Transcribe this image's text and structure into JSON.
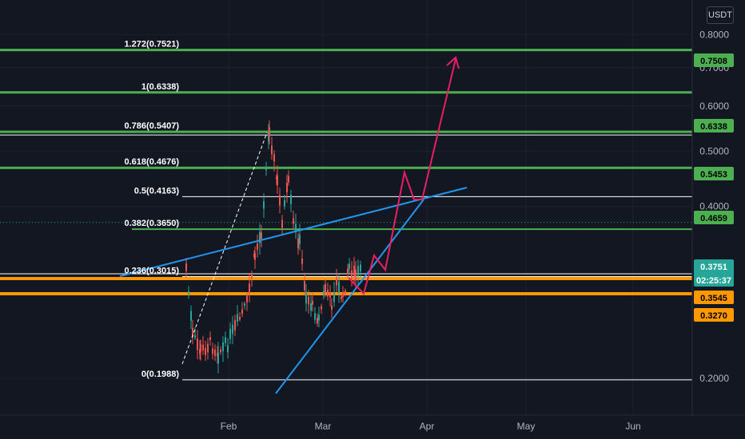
{
  "currency": "USDT",
  "chart_data": {
    "type": "candlestick",
    "symbol_quote": "USDT",
    "y_scale": "log",
    "ylim": [
      0.1725,
      0.92
    ],
    "y_ticks": [
      "0.8000",
      "0.7000",
      "0.6000",
      "0.5000",
      "0.4000",
      "0.2000"
    ],
    "x_ticks": [
      "Feb",
      "Mar",
      "Apr",
      "May",
      "Jun"
    ],
    "fib_levels": [
      {
        "label": "1.272(0.7521)",
        "price": 0.7521,
        "color": "#4caf50"
      },
      {
        "label": "1(0.6338)",
        "price": 0.6338,
        "color": "#4caf50"
      },
      {
        "label": "0.786(0.5407)",
        "price": 0.5407,
        "color": "#4caf50"
      },
      {
        "label": "0.618(0.4676)",
        "price": 0.4676,
        "color": "#4caf50"
      },
      {
        "label": "0.5(0.4163)",
        "price": 0.4163,
        "color": "#ffffff"
      },
      {
        "label": "0.382(0.3650)",
        "price": 0.365,
        "color": "#4caf50"
      },
      {
        "label": "0.236(0.3015)",
        "price": 0.3015,
        "color": "#ffffff"
      },
      {
        "label": "0(0.1988)",
        "price": 0.1988,
        "color": "#ffffff"
      }
    ],
    "horizontal_levels": [
      {
        "price": 0.3545,
        "color": "#ff9800"
      },
      {
        "price": 0.327,
        "color": "#ff9800"
      }
    ],
    "price_badges": [
      {
        "text": "0.7508",
        "price": 0.7508,
        "bg": "#4caf50",
        "fg": "#000000"
      },
      {
        "text": "0.6338",
        "price": 0.6338,
        "bg": "#4caf50",
        "fg": "#000000"
      },
      {
        "text": "0.5453",
        "price": 0.5453,
        "bg": "#4caf50",
        "fg": "#000000"
      },
      {
        "text": "0.4659",
        "price": 0.4659,
        "bg": "#4caf50",
        "fg": "#000000"
      },
      {
        "text": "0.3751",
        "price": 0.3751,
        "bg": "#26a69a",
        "fg": "#ffffff",
        "countdown": "02:25:37"
      },
      {
        "text": "0.3545",
        "price": 0.3545,
        "bg": "#ff9800",
        "fg": "#000000"
      },
      {
        "text": "0.3270",
        "price": 0.327,
        "bg": "#ff9800",
        "fg": "#000000"
      }
    ],
    "last_price": 0.3751,
    "colors": {
      "up": "#26a69a",
      "down": "#ef5350",
      "fib_green": "#4caf50",
      "orange": "#ff9800",
      "trend_blue": "#2196f3",
      "projection": "#e91e63"
    }
  }
}
